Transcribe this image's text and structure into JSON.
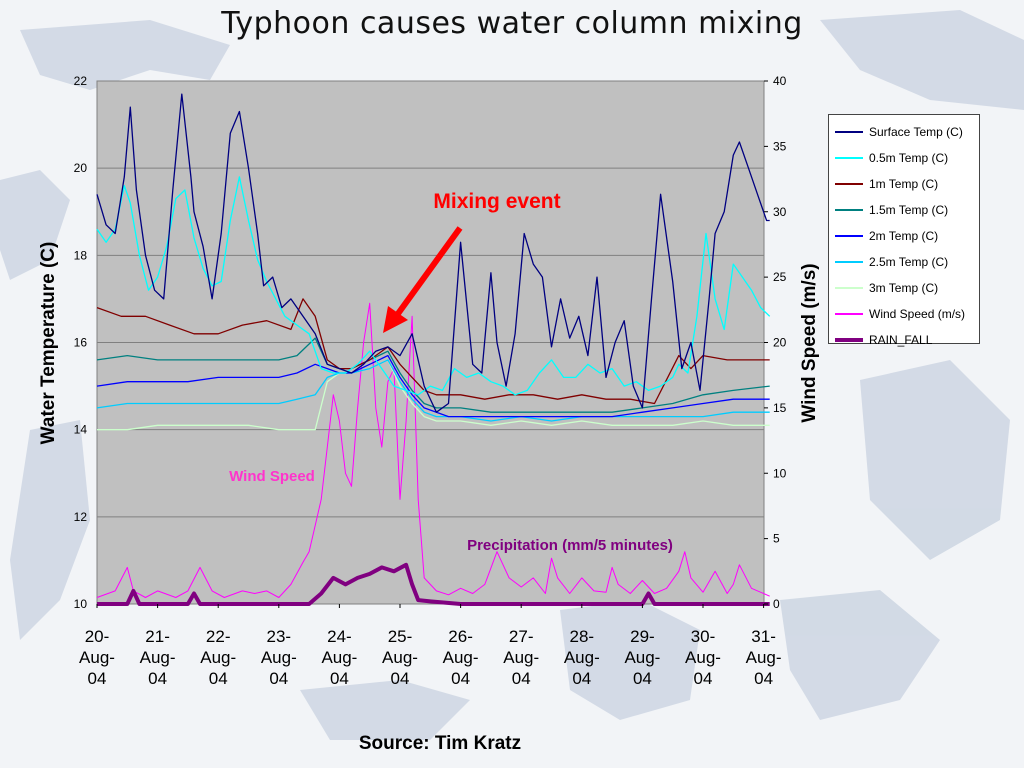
{
  "title": "Typhoon causes water column mixing",
  "source": "Source: Tim Kratz",
  "chart_data": {
    "type": "line",
    "ylabel": "Water Temperature (C)",
    "y2label": "Wind Speed (m/s)",
    "ylim": [
      10,
      22
    ],
    "y2lim": [
      0,
      40
    ],
    "yticks": [
      "10",
      "12",
      "14",
      "16",
      "18",
      "20",
      "22"
    ],
    "y2ticks": [
      "0",
      "5",
      "10",
      "15",
      "20",
      "25",
      "30",
      "35",
      "40"
    ],
    "x_categories": [
      "20-Aug-04",
      "21-Aug-04",
      "22-Aug-04",
      "23-Aug-04",
      "24-Aug-04",
      "25-Aug-04",
      "26-Aug-04",
      "27-Aug-04",
      "28-Aug-04",
      "29-Aug-04",
      "30-Aug-04",
      "31-Aug-04"
    ],
    "x_tick_lines": [
      [
        "20-",
        "Aug-",
        "04"
      ],
      [
        "21-",
        "Aug-",
        "04"
      ],
      [
        "22-",
        "Aug-",
        "04"
      ],
      [
        "23-",
        "Aug-",
        "04"
      ],
      [
        "24-",
        "Aug-",
        "04"
      ],
      [
        "25-",
        "Aug-",
        "04"
      ],
      [
        "26-",
        "Aug-",
        "04"
      ],
      [
        "27-",
        "Aug-",
        "04"
      ],
      [
        "28-",
        "Aug-",
        "04"
      ],
      [
        "29-",
        "Aug-",
        "04"
      ],
      [
        "30-",
        "Aug-",
        "04"
      ],
      [
        "31-",
        "Aug-",
        "04"
      ]
    ],
    "xlim": [
      0,
      11.1
    ],
    "grid": true,
    "legend_position": "right",
    "annotations": {
      "mixing": "Mixing event",
      "wind": "Wind Speed",
      "precip": "Precipitation (mm/5 minutes)"
    },
    "series": [
      {
        "name": "Surface Temp (C)",
        "axis": "left",
        "color": "#000080",
        "width": 1.3,
        "x": [
          0,
          0.15,
          0.3,
          0.45,
          0.55,
          0.65,
          0.8,
          0.95,
          1.1,
          1.25,
          1.4,
          1.55,
          1.6,
          1.75,
          1.9,
          2.05,
          2.2,
          2.35,
          2.5,
          2.65,
          2.75,
          2.9,
          3.05,
          3.2,
          3.4,
          3.6,
          3.8,
          4.0,
          4.2,
          4.4,
          4.6,
          4.8,
          5.0,
          5.2,
          5.4,
          5.6,
          5.8,
          6.0,
          6.2,
          6.35,
          6.5,
          6.6,
          6.75,
          6.9,
          7.05,
          7.2,
          7.35,
          7.5,
          7.65,
          7.8,
          7.95,
          8.1,
          8.25,
          8.4,
          8.55,
          8.7,
          8.85,
          9.0,
          9.15,
          9.3,
          9.5,
          9.65,
          9.8,
          9.95,
          10.1,
          10.2,
          10.35,
          10.5,
          10.6,
          10.75,
          10.9,
          11.05,
          11.1
        ],
        "y": [
          19.4,
          18.7,
          18.5,
          19.8,
          21.4,
          19.5,
          18.0,
          17.2,
          17.0,
          19.5,
          21.7,
          19.8,
          19.0,
          18.2,
          17.0,
          18.5,
          20.8,
          21.3,
          20.0,
          18.5,
          17.3,
          17.5,
          16.8,
          17.0,
          16.6,
          16.2,
          15.5,
          15.4,
          15.3,
          15.5,
          15.8,
          15.9,
          15.7,
          16.2,
          15.0,
          14.4,
          14.6,
          18.3,
          15.5,
          15.3,
          17.6,
          16.0,
          15.0,
          16.2,
          18.5,
          17.8,
          17.5,
          15.9,
          17.0,
          16.1,
          16.6,
          15.7,
          17.5,
          15.2,
          16.0,
          16.5,
          15.0,
          14.5,
          17.0,
          19.4,
          17.4,
          15.4,
          16.0,
          14.9,
          17.0,
          18.5,
          19.0,
          20.3,
          20.6,
          20.0,
          19.4,
          18.8,
          18.8
        ]
      },
      {
        "name": "0.5m Temp (C)",
        "axis": "left",
        "color": "#00ffff",
        "width": 1.3,
        "x": [
          0,
          0.15,
          0.3,
          0.45,
          0.55,
          0.7,
          0.85,
          1.0,
          1.15,
          1.3,
          1.45,
          1.6,
          1.75,
          1.9,
          2.05,
          2.2,
          2.35,
          2.5,
          2.65,
          2.8,
          2.95,
          3.1,
          3.3,
          3.5,
          3.7,
          3.9,
          4.1,
          4.3,
          4.5,
          4.7,
          4.9,
          5.1,
          5.3,
          5.5,
          5.7,
          5.9,
          6.1,
          6.3,
          6.5,
          6.7,
          6.9,
          7.1,
          7.3,
          7.5,
          7.7,
          7.9,
          8.1,
          8.3,
          8.5,
          8.7,
          8.9,
          9.1,
          9.3,
          9.5,
          9.6,
          9.75,
          9.9,
          10.05,
          10.2,
          10.35,
          10.5,
          10.65,
          10.8,
          10.95,
          11.1
        ],
        "y": [
          18.6,
          18.3,
          18.6,
          19.6,
          19.2,
          18.0,
          17.2,
          17.5,
          18.2,
          19.3,
          19.5,
          18.4,
          17.7,
          17.3,
          17.4,
          18.8,
          19.8,
          18.8,
          17.9,
          17.4,
          17.0,
          16.6,
          16.4,
          16.2,
          15.4,
          15.3,
          15.3,
          15.5,
          15.8,
          15.4,
          15.0,
          14.9,
          14.8,
          15.0,
          14.9,
          15.4,
          15.2,
          15.3,
          15.1,
          15.0,
          14.8,
          14.9,
          15.3,
          15.6,
          15.2,
          15.2,
          15.5,
          15.3,
          15.4,
          15.0,
          15.1,
          14.9,
          15.0,
          15.2,
          15.5,
          15.3,
          16.6,
          18.5,
          17.0,
          16.3,
          17.8,
          17.5,
          17.2,
          16.8,
          16.6
        ]
      },
      {
        "name": "1m Temp (C)",
        "axis": "left",
        "color": "#800000",
        "width": 1.3,
        "x": [
          0,
          0.4,
          0.8,
          1.2,
          1.6,
          2.0,
          2.4,
          2.8,
          3.2,
          3.4,
          3.6,
          3.8,
          4.0,
          4.2,
          4.5,
          4.8,
          5.0,
          5.2,
          5.4,
          5.6,
          5.8,
          6.0,
          6.4,
          6.8,
          7.2,
          7.6,
          8.0,
          8.4,
          8.8,
          9.2,
          9.6,
          9.8,
          10.0,
          10.4,
          10.8,
          11.1
        ],
        "y": [
          16.8,
          16.6,
          16.6,
          16.4,
          16.2,
          16.2,
          16.4,
          16.5,
          16.3,
          17.0,
          16.6,
          15.6,
          15.4,
          15.4,
          15.6,
          15.9,
          15.5,
          15.2,
          14.9,
          14.8,
          14.8,
          14.8,
          14.7,
          14.8,
          14.8,
          14.7,
          14.8,
          14.7,
          14.7,
          14.6,
          15.7,
          15.4,
          15.7,
          15.6,
          15.6,
          15.6
        ]
      },
      {
        "name": "1.5m Temp (C)",
        "axis": "left",
        "color": "#008080",
        "width": 1.3,
        "x": [
          0,
          0.5,
          1.0,
          1.5,
          2.0,
          2.5,
          3.0,
          3.3,
          3.6,
          3.8,
          4.0,
          4.2,
          4.5,
          4.8,
          5.0,
          5.2,
          5.4,
          5.6,
          5.8,
          6.0,
          6.5,
          7.0,
          7.5,
          8.0,
          8.5,
          9.0,
          9.5,
          10.0,
          10.5,
          11.1
        ],
        "y": [
          15.6,
          15.7,
          15.6,
          15.6,
          15.6,
          15.6,
          15.6,
          15.7,
          16.1,
          15.5,
          15.4,
          15.4,
          15.6,
          15.8,
          15.3,
          14.9,
          14.6,
          14.5,
          14.5,
          14.5,
          14.4,
          14.4,
          14.4,
          14.4,
          14.4,
          14.5,
          14.6,
          14.8,
          14.9,
          15.0
        ]
      },
      {
        "name": "2m Temp (C)",
        "axis": "left",
        "color": "#0000ff",
        "width": 1.3,
        "x": [
          0,
          0.5,
          1.0,
          1.5,
          2.0,
          2.5,
          3.0,
          3.3,
          3.6,
          3.8,
          4.0,
          4.2,
          4.5,
          4.8,
          5.0,
          5.2,
          5.4,
          5.6,
          5.8,
          6.0,
          6.5,
          7.0,
          7.5,
          8.0,
          8.5,
          9.0,
          9.5,
          10.0,
          10.5,
          11.1
        ],
        "y": [
          15.0,
          15.1,
          15.1,
          15.1,
          15.2,
          15.2,
          15.2,
          15.3,
          15.5,
          15.4,
          15.3,
          15.3,
          15.5,
          15.7,
          15.2,
          14.8,
          14.5,
          14.4,
          14.3,
          14.3,
          14.3,
          14.3,
          14.3,
          14.3,
          14.3,
          14.4,
          14.5,
          14.6,
          14.7,
          14.7
        ]
      },
      {
        "name": "2.5m Temp (C)",
        "axis": "left",
        "color": "#00ccff",
        "width": 1.3,
        "x": [
          0,
          0.5,
          1.0,
          1.5,
          2.0,
          2.5,
          3.0,
          3.3,
          3.6,
          3.8,
          4.0,
          4.2,
          4.5,
          4.8,
          5.0,
          5.2,
          5.4,
          5.6,
          5.8,
          6.0,
          6.5,
          7.0,
          7.5,
          8.0,
          8.5,
          9.0,
          9.5,
          10.0,
          10.5,
          11.1
        ],
        "y": [
          14.5,
          14.6,
          14.6,
          14.6,
          14.6,
          14.6,
          14.6,
          14.7,
          14.8,
          15.2,
          15.3,
          15.3,
          15.4,
          15.6,
          15.1,
          14.7,
          14.4,
          14.3,
          14.3,
          14.3,
          14.2,
          14.3,
          14.2,
          14.3,
          14.3,
          14.3,
          14.3,
          14.3,
          14.4,
          14.4
        ]
      },
      {
        "name": "3m Temp (C)",
        "axis": "left",
        "color": "#ccffcc",
        "width": 1.3,
        "x": [
          0,
          0.5,
          1.0,
          1.5,
          2.0,
          2.5,
          3.0,
          3.3,
          3.6,
          3.8,
          4.0,
          4.2,
          4.5,
          4.8,
          5.0,
          5.2,
          5.4,
          5.6,
          5.8,
          6.0,
          6.5,
          7.0,
          7.5,
          8.0,
          8.5,
          9.0,
          9.5,
          10.0,
          10.5,
          11.1
        ],
        "y": [
          14.0,
          14.0,
          14.1,
          14.1,
          14.1,
          14.1,
          14.0,
          14.0,
          14.0,
          15.1,
          15.3,
          15.3,
          15.4,
          15.6,
          15.0,
          14.6,
          14.3,
          14.2,
          14.2,
          14.2,
          14.1,
          14.2,
          14.1,
          14.2,
          14.1,
          14.1,
          14.1,
          14.2,
          14.1,
          14.1
        ]
      },
      {
        "name": "Wind Speed (m/s)",
        "axis": "right",
        "color": "#ff00ff",
        "width": 1.0,
        "x": [
          0,
          0.3,
          0.5,
          0.6,
          0.8,
          1.0,
          1.3,
          1.5,
          1.7,
          1.9,
          2.1,
          2.4,
          2.6,
          2.8,
          3.0,
          3.2,
          3.4,
          3.5,
          3.6,
          3.7,
          3.8,
          3.9,
          4.0,
          4.1,
          4.2,
          4.3,
          4.4,
          4.5,
          4.6,
          4.7,
          4.8,
          4.9,
          5.0,
          5.1,
          5.2,
          5.3,
          5.4,
          5.6,
          5.8,
          6.0,
          6.2,
          6.4,
          6.6,
          6.8,
          7.0,
          7.2,
          7.4,
          7.5,
          7.6,
          7.8,
          8.0,
          8.2,
          8.4,
          8.5,
          8.6,
          8.8,
          9.0,
          9.2,
          9.4,
          9.6,
          9.7,
          9.8,
          10.0,
          10.2,
          10.4,
          10.5,
          10.6,
          10.8,
          11.0,
          11.1
        ],
        "y": [
          0.5,
          1,
          2.8,
          1,
          0.5,
          1,
          0.5,
          1,
          2.8,
          1,
          0.5,
          1,
          0.8,
          1,
          0.5,
          1.5,
          3.2,
          4,
          6,
          8,
          12,
          16,
          14,
          10,
          9,
          15,
          20,
          23,
          15,
          12,
          17,
          18,
          8,
          14,
          22,
          8,
          2,
          1,
          0.7,
          1.2,
          0.8,
          1.5,
          4,
          2,
          1.3,
          2,
          0.8,
          3.5,
          2,
          0.8,
          2,
          1,
          0.9,
          2.8,
          1.5,
          0.8,
          1.8,
          0.8,
          1.2,
          2.5,
          4,
          2,
          0.9,
          2.5,
          0.8,
          1.5,
          3,
          1.2,
          0.8,
          0.6
        ]
      },
      {
        "name": "RAIN_FALL",
        "axis": "right",
        "color": "#800080",
        "width": 4.0,
        "x": [
          0,
          0.5,
          0.6,
          0.7,
          1.0,
          1.5,
          1.6,
          1.7,
          2.0,
          3.5,
          3.7,
          3.9,
          4.1,
          4.3,
          4.5,
          4.7,
          4.9,
          5.1,
          5.2,
          5.3,
          5.5,
          6.0,
          9.0,
          9.1,
          9.2,
          9.5,
          11.1
        ],
        "y": [
          0,
          0,
          1,
          0,
          0,
          0,
          0.8,
          0,
          0,
          0,
          0.8,
          2,
          1.5,
          2,
          2.3,
          2.8,
          2.5,
          3,
          1.5,
          0.3,
          0.2,
          0,
          0,
          0.8,
          0,
          0,
          0
        ]
      }
    ]
  }
}
